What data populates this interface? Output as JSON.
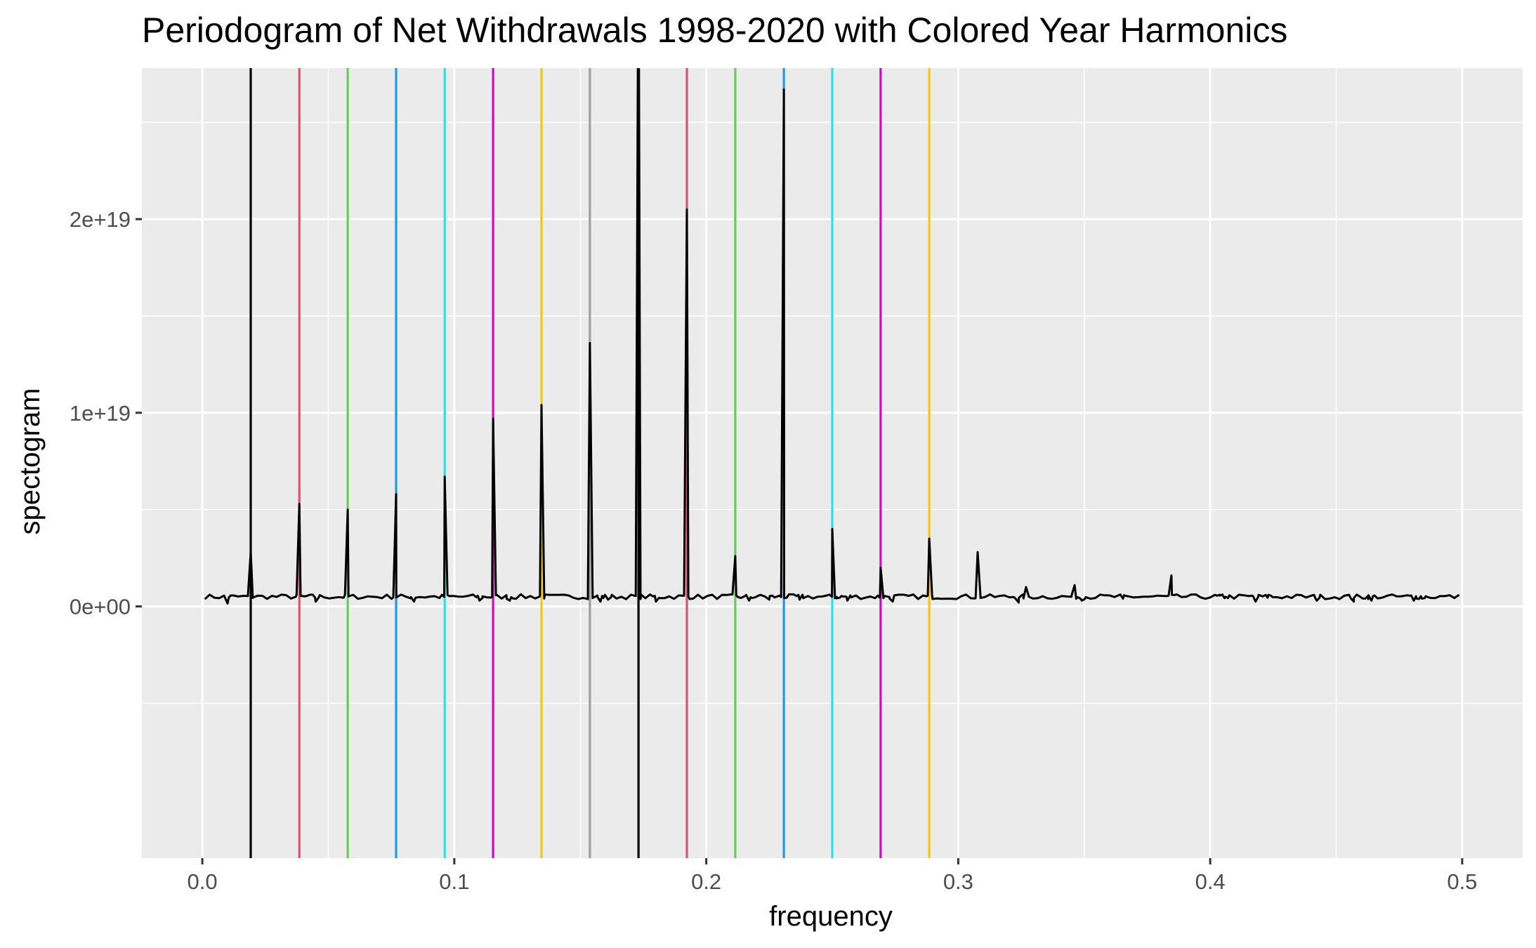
{
  "chart_data": {
    "type": "line",
    "title": "Periodogram of Net Withdrawals 1998-2020 with Colored Year Harmonics",
    "xlabel": "frequency",
    "ylabel": "spectogram",
    "xlim": [
      -0.024,
      0.524
    ],
    "ylim": [
      -1.3e+19,
      2.78e+19
    ],
    "x_ticks": [
      0.0,
      0.1,
      0.2,
      0.3,
      0.4,
      0.5
    ],
    "x_tick_labels": [
      "0.0",
      "0.1",
      "0.2",
      "0.3",
      "0.4",
      "0.5"
    ],
    "y_ticks": [
      0,
      1e+19,
      2e+19
    ],
    "y_tick_labels": [
      "0e+00",
      "1e+19",
      "2e+19"
    ],
    "grid": true,
    "panel_background": "#ebebeb",
    "grid_color": "#ffffff",
    "harmonic_lines": [
      {
        "x": 0.0192,
        "color": "#000000"
      },
      {
        "x": 0.0385,
        "color": "#df536b"
      },
      {
        "x": 0.0577,
        "color": "#61d04f"
      },
      {
        "x": 0.0769,
        "color": "#2297e6"
      },
      {
        "x": 0.0962,
        "color": "#28e2e5"
      },
      {
        "x": 0.1154,
        "color": "#cd0bbc"
      },
      {
        "x": 0.1346,
        "color": "#f5c710"
      },
      {
        "x": 0.1538,
        "color": "#9e9e9e"
      },
      {
        "x": 0.1731,
        "color": "#000000"
      },
      {
        "x": 0.1923,
        "color": "#df536b"
      },
      {
        "x": 0.2115,
        "color": "#61d04f"
      },
      {
        "x": 0.2308,
        "color": "#2297e6"
      },
      {
        "x": 0.25,
        "color": "#28e2e5"
      },
      {
        "x": 0.2692,
        "color": "#cd0bbc"
      },
      {
        "x": 0.2885,
        "color": "#f5c710"
      }
    ],
    "series": [
      {
        "color": "#000000",
        "baseline": 5e+17,
        "x_range": [
          0.001,
          0.5
        ],
        "peaks": [
          {
            "x": 0.0192,
            "y": 2.8e+18
          },
          {
            "x": 0.0385,
            "y": 5.3e+18
          },
          {
            "x": 0.0577,
            "y": 5e+18
          },
          {
            "x": 0.0769,
            "y": 5.8e+18
          },
          {
            "x": 0.0962,
            "y": 6.7e+18
          },
          {
            "x": 0.1154,
            "y": 9.7e+18
          },
          {
            "x": 0.1346,
            "y": 1.04e+19
          },
          {
            "x": 0.1538,
            "y": 1.36e+19
          },
          {
            "x": 0.1731,
            "y": 3.6e+19
          },
          {
            "x": 0.1923,
            "y": 2.05e+19
          },
          {
            "x": 0.2115,
            "y": 2.6e+18
          },
          {
            "x": 0.2308,
            "y": 2.67e+19
          },
          {
            "x": 0.25,
            "y": 4e+18
          },
          {
            "x": 0.2692,
            "y": 2e+18
          },
          {
            "x": 0.2885,
            "y": 3.5e+18
          },
          {
            "x": 0.3077,
            "y": 2.8e+18
          },
          {
            "x": 0.3269,
            "y": 1e+18
          },
          {
            "x": 0.3462,
            "y": 1.1e+18
          },
          {
            "x": 0.3654,
            "y": 4e+17
          },
          {
            "x": 0.3846,
            "y": 1.6e+18
          },
          {
            "x": 0.4038,
            "y": 6e+17
          },
          {
            "x": 0.406,
            "y": 5e+17
          },
          {
            "x": 0.4231,
            "y": 6e+17
          },
          {
            "x": 0.4423,
            "y": 3e+17
          },
          {
            "x": 0.4615,
            "y": 4e+17
          },
          {
            "x": 0.4808,
            "y": 3e+17
          },
          {
            "x": 0.484,
            "y": 4e+17
          }
        ],
        "minor_bumps": [
          {
            "x": 0.01,
            "y": 1.5e+17
          },
          {
            "x": 0.045,
            "y": 2.5e+17
          },
          {
            "x": 0.084,
            "y": 2.5e+17
          },
          {
            "x": 0.11,
            "y": 3e+17
          },
          {
            "x": 0.122,
            "y": 3e+17
          },
          {
            "x": 0.158,
            "y": 2.5e+17
          },
          {
            "x": 0.161,
            "y": 3.5e+17
          },
          {
            "x": 0.18,
            "y": 2.5e+17
          },
          {
            "x": 0.217,
            "y": 3e+17
          },
          {
            "x": 0.225,
            "y": 3.5e+17
          },
          {
            "x": 0.237,
            "y": 3.5e+17
          },
          {
            "x": 0.253,
            "y": 4.5e+17
          },
          {
            "x": 0.256,
            "y": 3e+17
          },
          {
            "x": 0.274,
            "y": 2.5e+17
          },
          {
            "x": 0.324,
            "y": 2e+17
          },
          {
            "x": 0.349,
            "y": 3e+17
          },
          {
            "x": 0.418,
            "y": 2.5e+17
          },
          {
            "x": 0.457,
            "y": 2.5e+17
          },
          {
            "x": 0.464,
            "y": 3e+17
          }
        ]
      }
    ]
  }
}
